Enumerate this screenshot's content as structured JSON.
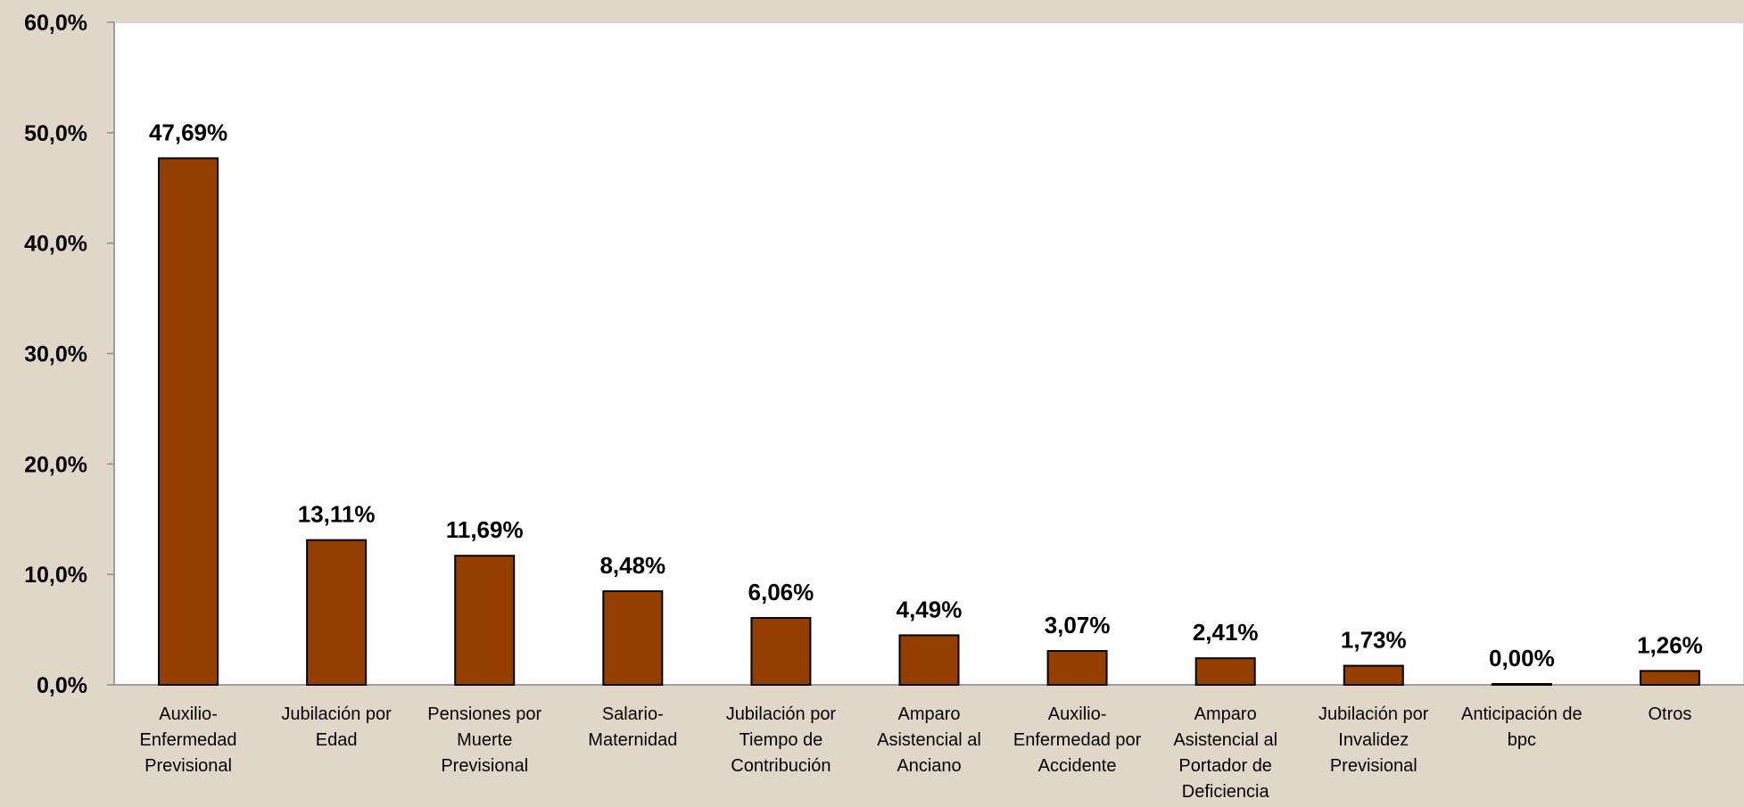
{
  "chart_data": {
    "type": "bar",
    "title": "",
    "xlabel": "",
    "ylabel": "",
    "categories": [
      "Auxilio-Enfermedad Previsional",
      "Jubilación por Edad",
      "Pensiones por Muerte Previsional",
      "Salario-Maternidad",
      "Jubilación por Tiempo de Contribución",
      "Amparo Asistencial al Anciano",
      "Auxilio-Enfermedad por Accidente",
      "Amparo Asistencial al Portador de Deficiencia",
      "Jubilación por Invalidez Previsional",
      "Anticipación de bpc",
      "Otros"
    ],
    "category_label_lines": [
      [
        "Auxilio-",
        "Enfermedad",
        "Previsional"
      ],
      [
        "Jubilación por",
        "Edad"
      ],
      [
        "Pensiones por",
        "Muerte",
        "Previsional"
      ],
      [
        "Salario-",
        "Maternidad"
      ],
      [
        "Jubilación por",
        "Tiempo de",
        "Contribución"
      ],
      [
        "Amparo",
        "Asistencial al",
        "Anciano"
      ],
      [
        "Auxilio-",
        "Enfermedad por",
        "Accidente"
      ],
      [
        "Amparo",
        "Asistencial al",
        "Portador de",
        "Deficiencia"
      ],
      [
        "Jubilación por",
        "Invalidez",
        "Previsional"
      ],
      [
        "Anticipación de",
        "bpc"
      ],
      [
        "Otros"
      ]
    ],
    "values": [
      47.69,
      13.11,
      11.69,
      8.48,
      6.06,
      4.49,
      3.07,
      2.41,
      1.73,
      0.0,
      1.26
    ],
    "data_labels": [
      "47,69%",
      "13,11%",
      "11,69%",
      "8,48%",
      "6,06%",
      "4,49%",
      "3,07%",
      "2,41%",
      "1,73%",
      "0,00%",
      "1,26%"
    ],
    "ylim": [
      0,
      60
    ],
    "yticks": [
      0,
      10,
      20,
      30,
      40,
      50,
      60
    ],
    "ytick_labels": [
      "0,0%",
      "10,0%",
      "20,0%",
      "30,0%",
      "40,0%",
      "50,0%",
      "60,0%"
    ],
    "grid": false,
    "legend": "none",
    "colors": {
      "bar_fill": "#943f00",
      "bar_stroke": "#000000",
      "plot_background": "#ffffff",
      "page_background": "#e0d7c8",
      "plot_border": "#d7d0ea"
    }
  }
}
